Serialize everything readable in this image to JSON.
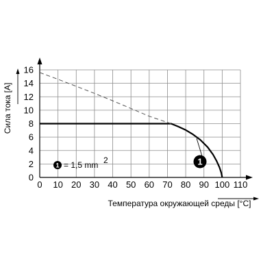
{
  "chart_data": {
    "type": "line",
    "xlabel": "Температура окружающей среды [°C]",
    "ylabel": "Сила тока [A]",
    "xlim": [
      0,
      110
    ],
    "ylim": [
      0,
      16
    ],
    "xticks": [
      "0",
      "10",
      "20",
      "30",
      "40",
      "50",
      "60",
      "70",
      "80",
      "90",
      "100",
      "110"
    ],
    "yticks": [
      "0",
      "2",
      "4",
      "6",
      "8",
      "10",
      "12",
      "14",
      "16"
    ],
    "grid": true,
    "legend_position": "bottom-left",
    "legend": {
      "marker": "1",
      "text": "= 1,5 mm",
      "superscript": "2"
    },
    "series": [
      {
        "style": "solid",
        "color": "#000000",
        "marker_label": "1",
        "x": [
          0,
          72,
          76,
          80,
          84,
          88,
          92,
          95,
          97,
          98.5,
          99.5,
          100
        ],
        "y": [
          8,
          8,
          7.55,
          7.05,
          6.4,
          5.6,
          4.5,
          3.4,
          2.4,
          1.5,
          0.7,
          0
        ]
      },
      {
        "style": "dashed",
        "color": "#000000",
        "x": [
          0,
          10,
          20,
          30,
          40,
          50,
          60,
          72
        ],
        "y": [
          15.6,
          14.6,
          13.55,
          12.5,
          11.4,
          10.25,
          9.1,
          8
        ]
      }
    ],
    "annotation": {
      "label": "1",
      "points_to": [
        86,
        5.8
      ]
    }
  }
}
